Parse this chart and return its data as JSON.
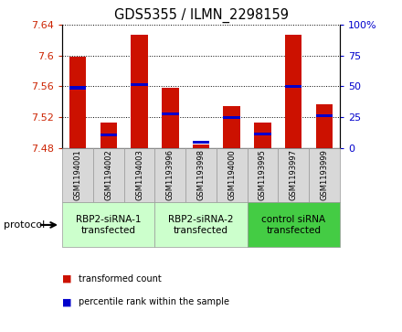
{
  "title": "GDS5355 / ILMN_2298159",
  "samples": [
    "GSM1194001",
    "GSM1194002",
    "GSM1194003",
    "GSM1193996",
    "GSM1193998",
    "GSM1194000",
    "GSM1193995",
    "GSM1193997",
    "GSM1193999"
  ],
  "red_values": [
    7.598,
    7.513,
    7.627,
    7.558,
    7.484,
    7.534,
    7.513,
    7.627,
    7.537
  ],
  "blue_values": [
    7.558,
    7.497,
    7.562,
    7.524,
    7.487,
    7.519,
    7.498,
    7.56,
    7.522
  ],
  "baseline": 7.48,
  "ylim_left": [
    7.48,
    7.64
  ],
  "yticks_left": [
    7.48,
    7.52,
    7.56,
    7.6,
    7.64
  ],
  "yticks_right": [
    0,
    25,
    50,
    75,
    100
  ],
  "groups": [
    {
      "label": "RBP2-siRNA-1\ntransfected",
      "start": 0,
      "end": 3,
      "color": "#ccffcc"
    },
    {
      "label": "RBP2-siRNA-2\ntransfected",
      "start": 3,
      "end": 6,
      "color": "#ccffcc"
    },
    {
      "label": "control siRNA\ntransfected",
      "start": 6,
      "end": 9,
      "color": "#44cc44"
    }
  ],
  "bar_width": 0.55,
  "red_color": "#cc1100",
  "blue_color": "#0000cc",
  "left_tick_color": "#cc2200",
  "right_tick_color": "#0000cc",
  "sample_box_color": "#d8d8d8",
  "protocol_label": "protocol",
  "legend_items": [
    {
      "color": "#cc1100",
      "label": "transformed count"
    },
    {
      "color": "#0000cc",
      "label": "percentile rank within the sample"
    }
  ]
}
